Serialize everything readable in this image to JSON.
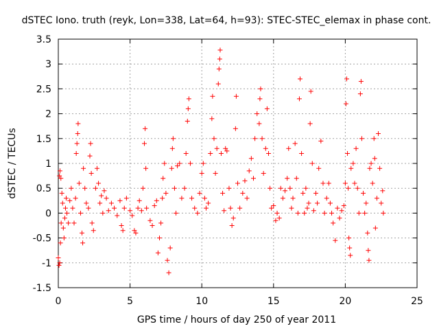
{
  "chart_data": {
    "type": "scatter",
    "title": "dSTEC Iono. truth (reyk, Lon=338, Lat=64, h=93): STEC-STEC_elemax in phase cont.",
    "xlabel": "GPS time / hours of day 250 of year 2011",
    "ylabel": "dSTEC  / TECUs",
    "xlim": [
      0,
      25
    ],
    "ylim": [
      -1.5,
      3.5
    ],
    "x_ticks": [
      0,
      5,
      10,
      15,
      20,
      25
    ],
    "x_tick_labels": [
      "0",
      "5",
      "10",
      "15",
      "20",
      "25"
    ],
    "y_ticks": [
      -1.5,
      -1,
      -0.5,
      0,
      0.5,
      1,
      1.5,
      2,
      2.5,
      3,
      3.5
    ],
    "y_tick_labels": [
      "-1.5",
      "-1",
      "-0.5",
      "0",
      "0.5",
      "1",
      "1.5",
      "2",
      "2.5",
      "3",
      "3.5"
    ],
    "grid": true,
    "marker": "+",
    "color": "#ff0000",
    "series": [
      {
        "points": [
          [
            0.0,
            -0.9
          ],
          [
            0.05,
            -1.05
          ],
          [
            0.1,
            -1.0
          ],
          [
            0.15,
            -0.6
          ],
          [
            0.2,
            -0.2
          ],
          [
            0.08,
            0.75
          ],
          [
            0.12,
            0.85
          ],
          [
            0.18,
            0.7
          ],
          [
            0.25,
            0.4
          ],
          [
            0.3,
            0.2
          ],
          [
            0.35,
            -0.3
          ],
          [
            0.4,
            -0.5
          ],
          [
            0.45,
            -0.1
          ],
          [
            0.5,
            0.1
          ],
          [
            0.55,
            0.3
          ],
          [
            0.6,
            0.0
          ],
          [
            0.7,
            -0.2
          ],
          [
            0.8,
            0.25
          ],
          [
            0.9,
            0.5
          ],
          [
            1.0,
            0.1
          ],
          [
            1.1,
            -0.2
          ],
          [
            1.2,
            0.3
          ],
          [
            1.25,
            1.2
          ],
          [
            1.3,
            1.4
          ],
          [
            1.35,
            1.6
          ],
          [
            1.38,
            1.8
          ],
          [
            1.45,
            0.6
          ],
          [
            1.55,
            0.0
          ],
          [
            1.65,
            -0.4
          ],
          [
            1.7,
            -0.6
          ],
          [
            1.75,
            0.9
          ],
          [
            1.85,
            0.5
          ],
          [
            1.95,
            0.2
          ],
          [
            2.1,
            0.1
          ],
          [
            2.2,
            1.15
          ],
          [
            2.25,
            1.4
          ],
          [
            2.3,
            0.8
          ],
          [
            2.35,
            -0.2
          ],
          [
            2.45,
            -0.35
          ],
          [
            2.6,
            0.5
          ],
          [
            2.7,
            0.9
          ],
          [
            2.8,
            0.6
          ],
          [
            2.9,
            0.2
          ],
          [
            3.0,
            0.35
          ],
          [
            3.1,
            0.0
          ],
          [
            3.2,
            0.45
          ],
          [
            3.35,
            0.3
          ],
          [
            3.5,
            0.05
          ],
          [
            3.7,
            0.2
          ],
          [
            3.9,
            0.1
          ],
          [
            4.1,
            -0.05
          ],
          [
            4.3,
            0.25
          ],
          [
            4.4,
            -0.25
          ],
          [
            4.5,
            -0.35
          ],
          [
            4.6,
            0.1
          ],
          [
            4.75,
            0.3
          ],
          [
            5.0,
            0.05
          ],
          [
            5.15,
            -0.05
          ],
          [
            5.3,
            -0.35
          ],
          [
            5.4,
            -0.4
          ],
          [
            5.55,
            0.1
          ],
          [
            5.65,
            0.25
          ],
          [
            5.8,
            0.05
          ],
          [
            5.9,
            0.5
          ],
          [
            6.0,
            1.4
          ],
          [
            6.05,
            1.7
          ],
          [
            6.1,
            0.9
          ],
          [
            6.15,
            0.1
          ],
          [
            6.4,
            -0.15
          ],
          [
            6.55,
            -0.25
          ],
          [
            6.7,
            0.15
          ],
          [
            6.85,
            0.25
          ],
          [
            6.95,
            -0.8
          ],
          [
            7.05,
            -0.5
          ],
          [
            7.15,
            -0.2
          ],
          [
            7.25,
            0.3
          ],
          [
            7.3,
            0.7
          ],
          [
            7.4,
            1.0
          ],
          [
            7.5,
            0.4
          ],
          [
            7.6,
            -0.95
          ],
          [
            7.7,
            -1.2
          ],
          [
            7.8,
            -0.7
          ],
          [
            7.9,
            0.9
          ],
          [
            7.95,
            1.3
          ],
          [
            8.0,
            1.5
          ],
          [
            8.1,
            0.5
          ],
          [
            8.2,
            0.0
          ],
          [
            8.3,
            0.95
          ],
          [
            8.45,
            1.0
          ],
          [
            8.6,
            0.3
          ],
          [
            8.8,
            0.5
          ],
          [
            8.9,
            1.2
          ],
          [
            9.0,
            1.85
          ],
          [
            9.05,
            2.1
          ],
          [
            9.1,
            2.3
          ],
          [
            9.2,
            1.0
          ],
          [
            9.3,
            0.3
          ],
          [
            9.5,
            0.1
          ],
          [
            9.7,
            0.0
          ],
          [
            9.85,
            0.4
          ],
          [
            10.0,
            0.8
          ],
          [
            10.1,
            1.0
          ],
          [
            10.2,
            0.3
          ],
          [
            10.3,
            0.1
          ],
          [
            10.45,
            0.2
          ],
          [
            10.6,
            1.2
          ],
          [
            10.7,
            1.9
          ],
          [
            10.75,
            2.35
          ],
          [
            10.85,
            1.5
          ],
          [
            10.95,
            0.8
          ],
          [
            11.05,
            1.3
          ],
          [
            11.15,
            2.6
          ],
          [
            11.2,
            2.9
          ],
          [
            11.25,
            3.1
          ],
          [
            11.28,
            3.28
          ],
          [
            11.35,
            1.2
          ],
          [
            11.45,
            0.4
          ],
          [
            11.55,
            0.05
          ],
          [
            11.65,
            1.3
          ],
          [
            11.75,
            1.25
          ],
          [
            11.9,
            0.5
          ],
          [
            12.0,
            0.1
          ],
          [
            12.1,
            -0.25
          ],
          [
            12.2,
            -0.1
          ],
          [
            12.35,
            1.7
          ],
          [
            12.4,
            2.35
          ],
          [
            12.5,
            0.6
          ],
          [
            12.65,
            0.1
          ],
          [
            12.85,
            0.4
          ],
          [
            13.0,
            0.65
          ],
          [
            13.15,
            0.3
          ],
          [
            13.3,
            0.85
          ],
          [
            13.45,
            1.1
          ],
          [
            13.6,
            0.7
          ],
          [
            13.7,
            1.5
          ],
          [
            13.85,
            2.0
          ],
          [
            14.0,
            1.8
          ],
          [
            14.05,
            2.3
          ],
          [
            14.1,
            2.5
          ],
          [
            14.2,
            1.5
          ],
          [
            14.3,
            0.8
          ],
          [
            14.45,
            1.3
          ],
          [
            14.55,
            2.1
          ],
          [
            14.65,
            1.2
          ],
          [
            14.75,
            0.5
          ],
          [
            14.85,
            0.1
          ],
          [
            15.0,
            0.15
          ],
          [
            15.15,
            -0.15
          ],
          [
            15.25,
            0.0
          ],
          [
            15.4,
            -0.1
          ],
          [
            15.5,
            0.5
          ],
          [
            15.65,
            0.3
          ],
          [
            15.8,
            0.45
          ],
          [
            15.95,
            0.7
          ],
          [
            16.05,
            1.3
          ],
          [
            16.15,
            0.5
          ],
          [
            16.25,
            0.1
          ],
          [
            16.35,
            0.3
          ],
          [
            16.5,
            1.4
          ],
          [
            16.6,
            0.7
          ],
          [
            16.7,
            0.0
          ],
          [
            16.8,
            2.3
          ],
          [
            16.85,
            2.7
          ],
          [
            16.95,
            1.2
          ],
          [
            17.05,
            0.4
          ],
          [
            17.15,
            0.0
          ],
          [
            17.25,
            0.5
          ],
          [
            17.35,
            0.1
          ],
          [
            17.45,
            0.2
          ],
          [
            17.55,
            1.8
          ],
          [
            17.6,
            2.45
          ],
          [
            17.7,
            1.0
          ],
          [
            17.8,
            0.05
          ],
          [
            17.95,
            0.4
          ],
          [
            18.05,
            0.2
          ],
          [
            18.15,
            0.9
          ],
          [
            18.3,
            1.45
          ],
          [
            18.45,
            0.6
          ],
          [
            18.55,
            0.0
          ],
          [
            18.7,
            0.3
          ],
          [
            18.85,
            0.6
          ],
          [
            18.95,
            0.2
          ],
          [
            19.05,
            0.0
          ],
          [
            19.15,
            -0.2
          ],
          [
            19.3,
            -0.55
          ],
          [
            19.45,
            0.1
          ],
          [
            19.6,
            -0.1
          ],
          [
            19.75,
            0.05
          ],
          [
            19.9,
            0.15
          ],
          [
            20.0,
            0.6
          ],
          [
            20.05,
            2.2
          ],
          [
            20.1,
            2.7
          ],
          [
            20.15,
            1.2
          ],
          [
            20.2,
            0.5
          ],
          [
            20.25,
            -0.5
          ],
          [
            20.3,
            -0.7
          ],
          [
            20.35,
            -0.85
          ],
          [
            20.4,
            0.9
          ],
          [
            20.55,
            1.0
          ],
          [
            20.65,
            0.6
          ],
          [
            20.75,
            1.3
          ],
          [
            20.85,
            0.5
          ],
          [
            20.95,
            0.0
          ],
          [
            21.05,
            2.4
          ],
          [
            21.1,
            2.65
          ],
          [
            21.15,
            1.5
          ],
          [
            21.25,
            0.4
          ],
          [
            21.35,
            0.0
          ],
          [
            21.45,
            0.2
          ],
          [
            21.55,
            -0.4
          ],
          [
            21.6,
            -0.75
          ],
          [
            21.65,
            -0.95
          ],
          [
            21.7,
            0.9
          ],
          [
            21.8,
            1.0
          ],
          [
            21.9,
            0.6
          ],
          [
            22.0,
            1.5
          ],
          [
            22.05,
            1.1
          ],
          [
            22.1,
            -0.3
          ],
          [
            22.2,
            0.3
          ],
          [
            22.3,
            1.6
          ],
          [
            22.4,
            0.9
          ],
          [
            22.5,
            0.2
          ],
          [
            22.6,
            0.45
          ],
          [
            22.65,
            0.0
          ]
        ]
      }
    ]
  }
}
